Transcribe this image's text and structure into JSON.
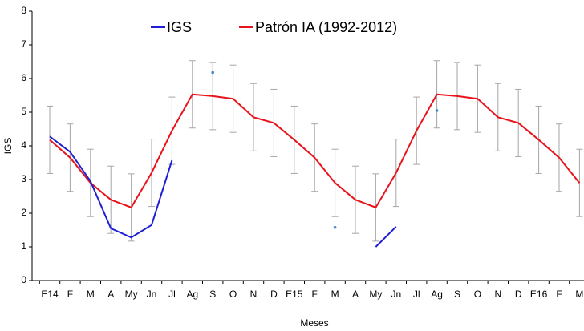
{
  "chart_data": {
    "type": "line",
    "x_label": "Meses",
    "y_label": "IGS",
    "categories": [
      "E14",
      "F",
      "M",
      "A",
      "My",
      "Jn",
      "Jl",
      "Ag",
      "S",
      "O",
      "N",
      "D",
      "E15",
      "F",
      "M",
      "A",
      "My",
      "Jn",
      "Jl",
      "Ag",
      "S",
      "O",
      "N",
      "D",
      "E16",
      "F",
      "M"
    ],
    "series": [
      {
        "name": "IGS",
        "color": "#1f1fd6",
        "values": [
          4.28,
          3.82,
          2.95,
          1.55,
          1.28,
          1.65,
          3.57,
          null,
          6.18,
          null,
          null,
          null,
          null,
          null,
          1.58,
          null,
          1.0,
          1.6,
          null,
          5.05,
          null,
          null,
          null,
          null,
          null,
          null,
          null
        ]
      },
      {
        "name": "Patrón IA (1992-2012)",
        "color": "#e8141c",
        "values": [
          4.18,
          3.65,
          2.9,
          2.4,
          2.17,
          3.2,
          4.45,
          5.53,
          5.48,
          5.4,
          4.85,
          4.68,
          4.18,
          3.65,
          2.9,
          2.4,
          2.17,
          3.2,
          4.45,
          5.53,
          5.48,
          5.4,
          4.85,
          4.68,
          4.18,
          3.65,
          2.9
        ],
        "errors": [
          1,
          1,
          1,
          1,
          1,
          1,
          1,
          1,
          1,
          1,
          1,
          1,
          1,
          1,
          1,
          1,
          1,
          1,
          1,
          1,
          1,
          1,
          1,
          1,
          1,
          1,
          1
        ],
        "error_color": "#a6a6a6"
      }
    ],
    "ylim": [
      0,
      8
    ],
    "yticks": [
      0,
      1,
      2,
      3,
      4,
      5,
      6,
      7,
      8
    ],
    "grid": false,
    "legend": "top"
  }
}
